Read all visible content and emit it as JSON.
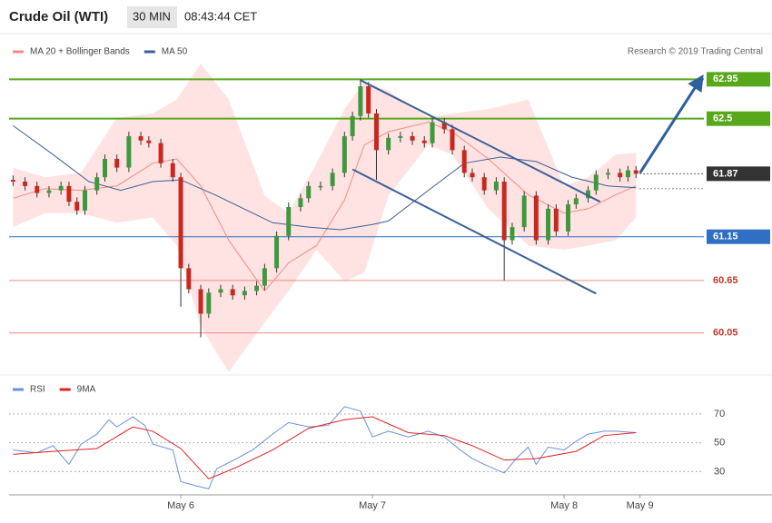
{
  "header": {
    "title": "Crude Oil (WTI)",
    "interval": "30 MIN",
    "time": "08:43:44 CET"
  },
  "source": "Research © 2019 Trading Central",
  "chart_data": [
    {
      "type": "candlestick",
      "x": [
        1,
        4,
        7,
        10,
        13,
        15,
        17,
        19,
        22,
        24,
        27,
        30,
        33,
        35,
        38,
        41,
        43,
        45,
        48,
        50,
        53,
        56,
        59,
        62,
        64,
        67,
        70,
        73,
        75,
        78,
        81,
        84,
        86,
        88,
        90,
        92,
        95,
        98,
        101,
        104,
        106,
        109,
        111,
        114,
        116,
        119,
        122,
        124,
        126,
        129,
        132,
        135,
        137,
        140,
        142,
        145,
        147,
        150,
        153,
        155,
        157
      ],
      "open": [
        61.8,
        61.78,
        61.73,
        61.65,
        61.68,
        61.73,
        61.55,
        61.45,
        61.68,
        61.83,
        62.04,
        61.94,
        62.3,
        62.25,
        62.22,
        61.99,
        61.83,
        60.79,
        60.55,
        60.27,
        60.51,
        60.55,
        60.48,
        60.53,
        60.59,
        60.79,
        61.16,
        61.49,
        61.59,
        61.73,
        61.73,
        61.88,
        62.3,
        62.53,
        62.87,
        62.56,
        62.14,
        62.28,
        62.3,
        62.25,
        62.22,
        62.46,
        62.38,
        62.14,
        61.88,
        61.83,
        61.68,
        61.78,
        61.11,
        61.26,
        61.62,
        61.11,
        61.47,
        61.21,
        61.52,
        61.59,
        61.68,
        61.86,
        61.88,
        61.83,
        61.91
      ],
      "high": [
        61.85,
        61.83,
        61.78,
        61.73,
        61.78,
        61.78,
        61.6,
        61.73,
        61.88,
        62.09,
        62.09,
        62.35,
        62.35,
        62.3,
        62.27,
        62.04,
        61.88,
        60.84,
        60.6,
        60.56,
        60.6,
        60.6,
        60.58,
        60.64,
        60.84,
        61.21,
        61.54,
        61.64,
        61.78,
        61.78,
        61.93,
        62.35,
        62.58,
        62.95,
        62.92,
        62.61,
        62.33,
        62.35,
        62.35,
        62.3,
        62.51,
        62.51,
        62.43,
        62.19,
        61.93,
        61.88,
        61.83,
        61.83,
        61.31,
        61.67,
        61.67,
        61.52,
        61.52,
        61.57,
        61.64,
        61.73,
        61.91,
        61.93,
        61.93,
        61.96,
        61.96
      ],
      "low": [
        61.73,
        61.68,
        61.6,
        61.6,
        61.63,
        61.5,
        61.4,
        61.4,
        61.63,
        61.78,
        61.89,
        61.89,
        62.2,
        62.17,
        61.94,
        61.78,
        60.35,
        60.5,
        60.0,
        60.22,
        60.46,
        60.43,
        60.43,
        60.48,
        60.54,
        60.74,
        61.11,
        61.44,
        61.54,
        61.68,
        61.68,
        61.83,
        62.25,
        62.48,
        62.51,
        61.8,
        62.09,
        62.23,
        62.2,
        62.17,
        62.17,
        62.33,
        62.09,
        61.83,
        61.78,
        61.63,
        61.63,
        60.65,
        61.06,
        61.21,
        61.06,
        61.06,
        61.16,
        61.16,
        61.47,
        61.54,
        61.63,
        61.81,
        61.78,
        61.78,
        61.82
      ],
      "close": [
        61.78,
        61.73,
        61.65,
        61.68,
        61.73,
        61.55,
        61.45,
        61.68,
        61.83,
        62.04,
        61.94,
        62.3,
        62.25,
        62.22,
        61.99,
        61.83,
        60.79,
        60.55,
        60.27,
        60.51,
        60.55,
        60.48,
        60.53,
        60.59,
        60.79,
        61.16,
        61.49,
        61.59,
        61.73,
        61.73,
        61.88,
        62.3,
        62.53,
        62.87,
        62.56,
        62.14,
        62.28,
        62.3,
        62.25,
        62.22,
        62.46,
        62.38,
        62.14,
        61.88,
        61.83,
        61.68,
        61.78,
        61.11,
        61.26,
        61.62,
        61.11,
        61.47,
        61.21,
        61.52,
        61.59,
        61.68,
        61.86,
        61.88,
        61.83,
        61.91,
        61.87
      ],
      "up_color": "#3c9a3c",
      "down_color": "#c8281e",
      "series": [
        {
          "name": "MA 20 + Bollinger Bands",
          "color": "#f28b82",
          "band_color": "#ffdcdc",
          "x": [
            1,
            9,
            18,
            27,
            36,
            42,
            48,
            55,
            64,
            70,
            77,
            84,
            89,
            95,
            105,
            111,
            120,
            130,
            139,
            145,
            152,
            157
          ],
          "values": [
            61.59,
            61.7,
            61.68,
            61.73,
            61.99,
            62.04,
            61.73,
            61.11,
            60.53,
            60.85,
            61.05,
            61.57,
            62.2,
            62.35,
            62.46,
            62.35,
            62.04,
            61.63,
            61.42,
            61.47,
            61.63,
            61.73
          ],
          "upper": [
            61.94,
            61.83,
            61.88,
            62.51,
            62.56,
            62.72,
            63.13,
            62.72,
            61.62,
            61.42,
            61.99,
            62.61,
            62.92,
            62.82,
            62.51,
            62.56,
            62.61,
            62.72,
            61.73,
            61.83,
            62.09,
            62.11
          ],
          "lower": [
            61.26,
            61.42,
            61.42,
            61.31,
            61.37,
            61.05,
            60.12,
            59.6,
            60.17,
            60.53,
            61.0,
            60.64,
            60.74,
            61.62,
            62.2,
            62.09,
            61.47,
            61.05,
            61.0,
            61.05,
            61.11,
            61.37
          ]
        },
        {
          "name": "MA 50",
          "color": "#3b5f95",
          "x": [
            1,
            11,
            20,
            28,
            36,
            43,
            52,
            66,
            75,
            83,
            91,
            95,
            105,
            114,
            123,
            132,
            141,
            150,
            157
          ],
          "values": [
            62.42,
            62.09,
            61.78,
            61.68,
            61.78,
            61.8,
            61.62,
            61.31,
            61.26,
            61.23,
            61.29,
            61.33,
            61.68,
            61.99,
            62.06,
            62.01,
            61.83,
            61.73,
            61.71
          ]
        }
      ],
      "trendlines": [
        {
          "x": [
            88,
            148
          ],
          "values": [
            62.94,
            61.55
          ],
          "color": "#3b5f95"
        },
        {
          "x": [
            86,
            147
          ],
          "values": [
            61.92,
            60.5
          ],
          "color": "#3b5f95"
        },
        {
          "x": [
            158,
            173
          ],
          "values": [
            61.88,
            62.94
          ],
          "color": "#2e5f9e",
          "arrow": true
        }
      ],
      "levels": [
        {
          "value": 62.95,
          "color": "#58a81c",
          "style": "solid",
          "tag": "box"
        },
        {
          "value": 62.5,
          "color": "#58a81c",
          "style": "solid",
          "tag": "box"
        },
        {
          "value": 61.87,
          "color": "#333333",
          "style": "dotted",
          "tag": "box"
        },
        {
          "value": 61.7,
          "color": "#666666",
          "style": "dotted",
          "tag": "none"
        },
        {
          "value": 61.15,
          "color": "#2f6fc4",
          "style": "solid",
          "tag": "box"
        },
        {
          "value": 60.65,
          "color": "#f08a80",
          "style": "solid",
          "tag": "text"
        },
        {
          "value": 60.05,
          "color": "#f08a80",
          "style": "solid",
          "tag": "text"
        }
      ],
      "xlim": [
        0,
        174
      ],
      "ylim": [
        59.6,
        63.13
      ]
    },
    {
      "type": "line",
      "series": [
        {
          "name": "RSI",
          "color": "#6a8fe2",
          "x": [
            1,
            7,
            11,
            15,
            18,
            22,
            25,
            27,
            31,
            34,
            36,
            41,
            43,
            47,
            50,
            52,
            57,
            61,
            66,
            70,
            75,
            80,
            84,
            88,
            91,
            95,
            100,
            105,
            109,
            113,
            116,
            119,
            124,
            127,
            130,
            132,
            135,
            139,
            142,
            145,
            149,
            152,
            157
          ],
          "values": [
            45,
            43,
            48,
            35,
            49,
            56,
            66,
            61,
            68,
            62,
            49,
            45,
            23,
            20,
            18,
            32,
            39,
            45,
            56,
            64,
            61,
            62,
            75,
            72,
            54,
            58,
            54,
            58,
            54,
            45,
            39,
            35,
            29,
            39,
            47,
            35,
            47,
            45,
            51,
            56,
            58,
            58,
            57
          ]
        },
        {
          "name": "9MA",
          "color": "#e02020",
          "x": [
            1,
            11,
            22,
            31,
            36,
            43,
            50,
            57,
            66,
            75,
            84,
            91,
            100,
            109,
            116,
            124,
            132,
            142,
            149,
            157
          ],
          "values": [
            42,
            44,
            46,
            61,
            58,
            46,
            25,
            33,
            45,
            60,
            66,
            68,
            57,
            55,
            48,
            38,
            39,
            44,
            55,
            57
          ]
        }
      ],
      "xlim": [
        0,
        174
      ],
      "ylim": [
        17,
        80
      ],
      "yticks": [
        30,
        50,
        70
      ],
      "grid": true,
      "xticks": [
        {
          "value": 43,
          "label": "May 6"
        },
        {
          "value": 91,
          "label": "May 7"
        },
        {
          "value": 139,
          "label": "May 8"
        },
        {
          "value": 158,
          "label": "May 9"
        }
      ]
    }
  ]
}
